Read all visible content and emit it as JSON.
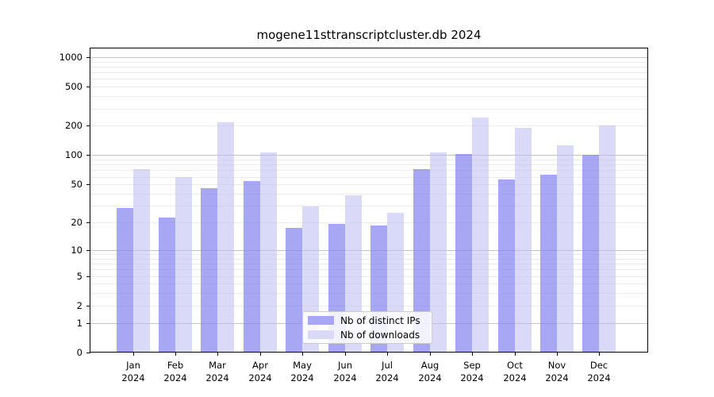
{
  "title": "mogene11sttranscriptcluster.db 2024",
  "legend": {
    "items": [
      {
        "label": "Nb of distinct IPs"
      },
      {
        "label": "Nb of downloads"
      }
    ]
  },
  "colors": {
    "ips_bar": "rgba(130,130,238,0.70)",
    "downloads_bar": "rgba(190,190,242,0.57)",
    "ips_solid": "#a7a7f3",
    "downloads_solid": "#dadaf7",
    "grid_major": "#c3c3c3",
    "grid_minor": "#ececec",
    "axis": "#000000"
  },
  "chart_data": {
    "type": "bar",
    "title": "mogene11sttranscriptcluster.db 2024",
    "categories": [
      "Jan 2024",
      "Feb 2024",
      "Mar 2024",
      "Apr 2024",
      "May 2024",
      "Jun 2024",
      "Jul 2024",
      "Aug 2024",
      "Sep 2024",
      "Oct 2024",
      "Nov 2024",
      "Dec 2024"
    ],
    "series": [
      {
        "name": "Nb of distinct IPs",
        "values": [
          28,
          22,
          45,
          53,
          17,
          19,
          18,
          71,
          100,
          55,
          62,
          99
        ]
      },
      {
        "name": "Nb of downloads",
        "values": [
          70,
          58,
          215,
          104,
          29,
          38,
          25,
          104,
          237,
          187,
          125,
          197
        ]
      }
    ],
    "xlabel": "",
    "ylabel": "",
    "yscale": "log10(1+x)",
    "yticks": [
      1000,
      500,
      200,
      100,
      50,
      20,
      10,
      5,
      2,
      1,
      0
    ],
    "ylim": [
      0,
      1250
    ],
    "grid": "horizontal major+minor",
    "legend_position": "inside bottom-center"
  }
}
